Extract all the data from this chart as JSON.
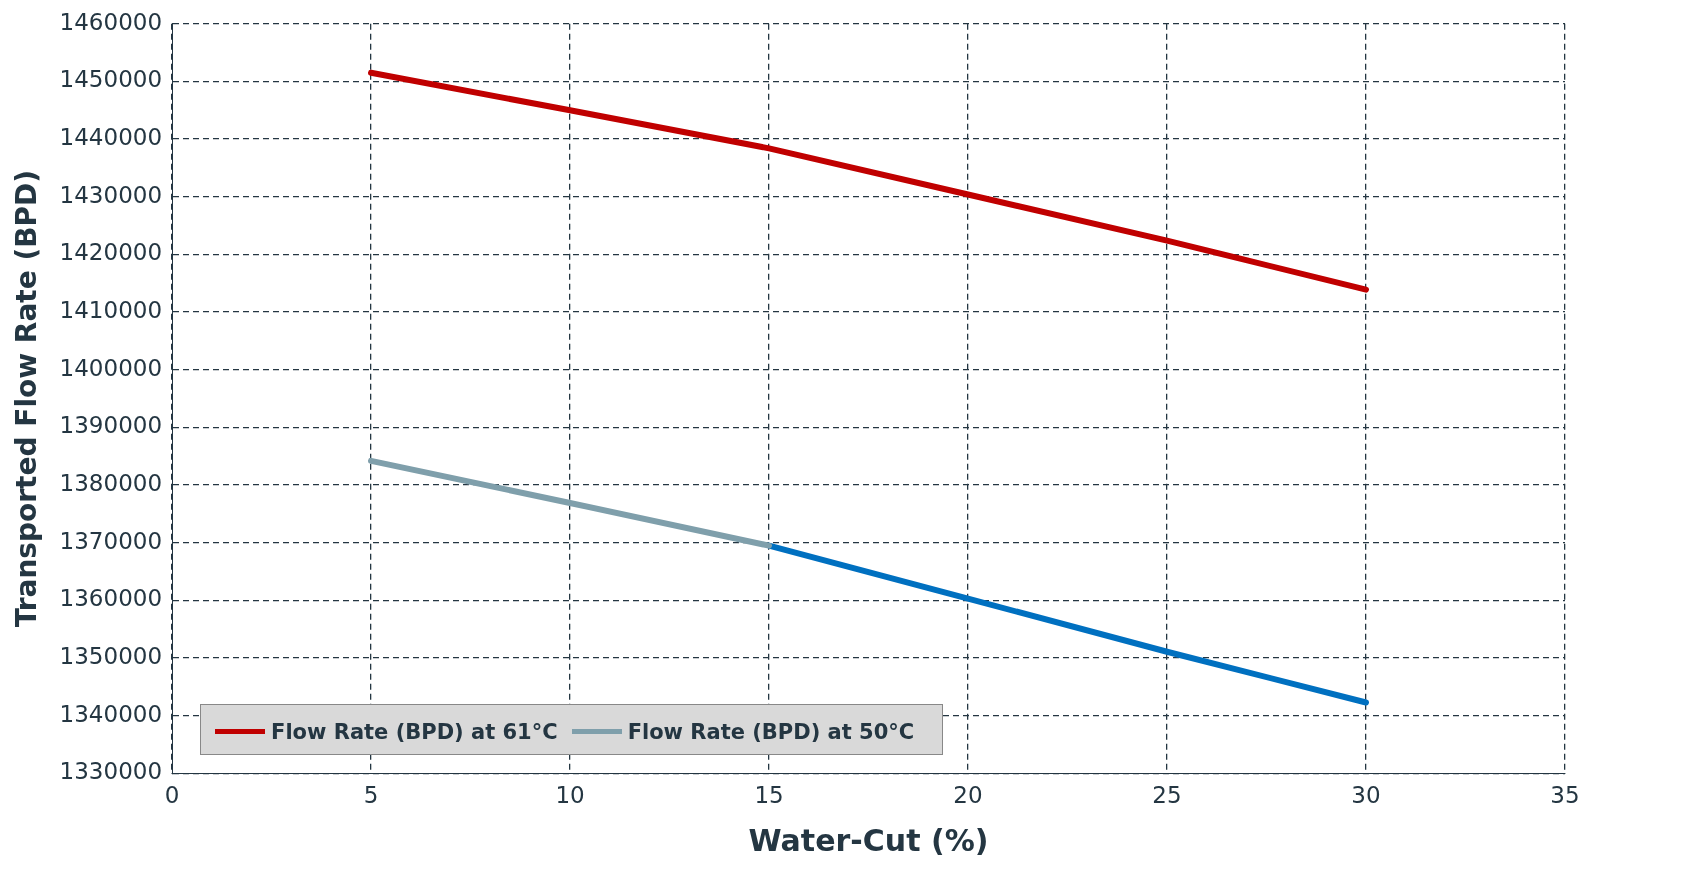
{
  "chart_data": {
    "type": "line",
    "xlabel": "Water-Cut (%)",
    "ylabel": "Transported Flow Rate (BPD)",
    "x": [
      5,
      10,
      15,
      20,
      25,
      30
    ],
    "series": [
      {
        "name": "Flow Rate (BPD) at 61°C",
        "color": "#c00000",
        "values": [
          1451500,
          1445000,
          1438400,
          1430400,
          1422400,
          1413900
        ]
      },
      {
        "name": "Flow Rate (BPD) at 50°C",
        "color": "#7f9fab",
        "x": [
          5,
          10,
          15
        ],
        "values": [
          1384200,
          1376900,
          1369500
        ]
      },
      {
        "color": "#0070c0",
        "x": [
          15,
          20,
          25,
          30
        ],
        "values": [
          1369500,
          1360300,
          1351100,
          1342300
        ]
      }
    ],
    "xlim": [
      0,
      35
    ],
    "xticks": [
      0,
      5,
      10,
      15,
      20,
      25,
      30,
      35
    ],
    "ylim": [
      1330000,
      1460000
    ],
    "yticks": [
      1330000,
      1340000,
      1350000,
      1360000,
      1370000,
      1380000,
      1390000,
      1400000,
      1410000,
      1420000,
      1430000,
      1440000,
      1450000,
      1460000
    ],
    "grid": true,
    "legend": "bottom left",
    "marker": "none",
    "line_style": "solid"
  }
}
